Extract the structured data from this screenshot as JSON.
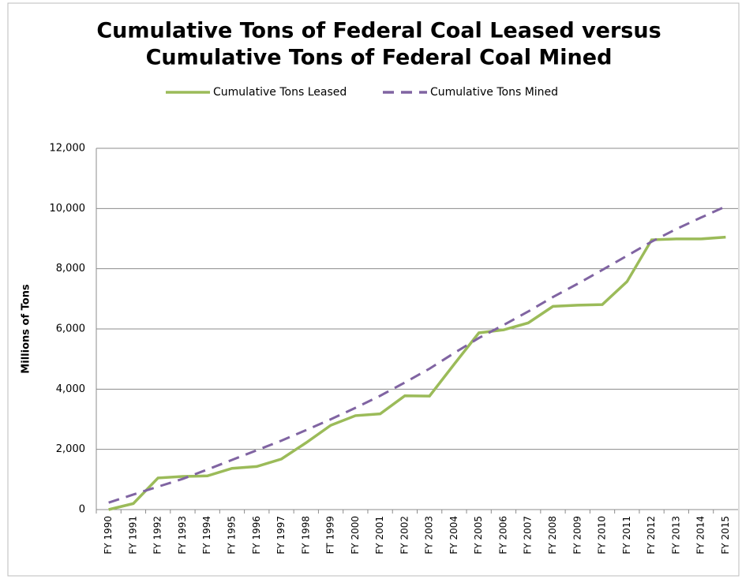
{
  "chart_data": {
    "type": "line",
    "title": [
      "Cumulative Tons of Federal Coal Leased versus",
      "Cumulative Tons of Federal Coal Mined"
    ],
    "y_label": "Millions of Tons",
    "categories": [
      "FY 1990",
      "FY 1991",
      "FY 1992",
      "FY 1993",
      "FY 1994",
      "FY 1995",
      "FY 1996",
      "FY 1997",
      "FY 1998",
      "FT 1999",
      "FY 2000",
      "FY 2001",
      "FY 2002",
      "FY 2003",
      "FY 2004",
      "FY 2005",
      "FY 2006",
      "FY 2007",
      "FY 2008",
      "FY 2009",
      "FY 2010",
      "FY 2011",
      "FY 2012",
      "FY 2013",
      "FY 2014",
      "FY 2015"
    ],
    "series": [
      {
        "name": "Cumulative Tons Leased",
        "color": "#9bbb59",
        "dashed": false,
        "values": [
          0,
          200,
          1050,
          1100,
          1120,
          1370,
          1430,
          1680,
          2220,
          2800,
          3120,
          3180,
          3780,
          3770,
          4830,
          5870,
          5970,
          6200,
          6750,
          6790,
          6810,
          7570,
          8960,
          8990,
          8990,
          9050
        ]
      },
      {
        "name": "Cumulative Tons Mined",
        "color": "#8064a2",
        "dashed": true,
        "values": [
          230,
          500,
          760,
          1020,
          1330,
          1650,
          1970,
          2290,
          2640,
          3000,
          3380,
          3780,
          4220,
          4680,
          5200,
          5700,
          6130,
          6580,
          7060,
          7500,
          7960,
          8430,
          8900,
          9320,
          9700,
          10070
        ]
      }
    ],
    "ylim": [
      0,
      12000
    ],
    "yticks": [
      0,
      {
        "value": 2000,
        "label": "2,000"
      },
      {
        "value": 4000,
        "label": "4,000"
      },
      {
        "value": 6000,
        "label": "6,000"
      },
      {
        "value": 8000,
        "label": "8,000"
      },
      {
        "value": 10000,
        "label": "10,000"
      },
      {
        "value": 12000,
        "label": "12,000"
      }
    ],
    "grid": true
  }
}
